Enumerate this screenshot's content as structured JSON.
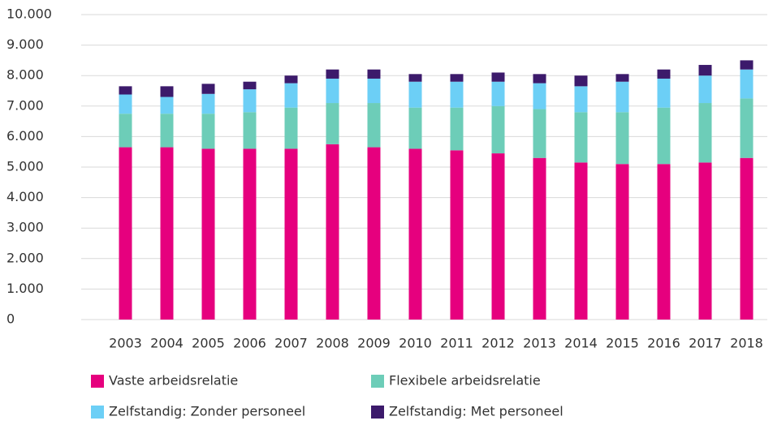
{
  "chart_data": {
    "type": "bar",
    "stacked": true,
    "categories": [
      "2003",
      "2004",
      "2005",
      "2006",
      "2007",
      "2008",
      "2009",
      "2010",
      "2011",
      "2012",
      "2013",
      "2014",
      "2015",
      "2016",
      "2017",
      "2018"
    ],
    "series": [
      {
        "name": "Vaste arbeidsrelatie",
        "color": "#e6007e",
        "values": [
          5650,
          5650,
          5600,
          5600,
          5600,
          5750,
          5650,
          5600,
          5550,
          5450,
          5300,
          5150,
          5100,
          5100,
          5150,
          5300
        ]
      },
      {
        "name": "Flexibele arbeidsrelatie",
        "color": "#6dcdb8",
        "values": [
          1100,
          1100,
          1150,
          1200,
          1350,
          1350,
          1450,
          1350,
          1400,
          1550,
          1600,
          1650,
          1700,
          1850,
          1950,
          1950
        ]
      },
      {
        "name": "Zelfstandig: Zonder personeel",
        "color": "#6ccff6",
        "values": [
          630,
          550,
          650,
          750,
          800,
          800,
          800,
          850,
          850,
          800,
          850,
          850,
          1000,
          950,
          900,
          950
        ]
      },
      {
        "name": "Zelfstandig: Met personeel",
        "color": "#3c1a6b",
        "values": [
          270,
          350,
          330,
          250,
          250,
          300,
          300,
          250,
          250,
          300,
          300,
          350,
          250,
          300,
          350,
          300
        ]
      }
    ],
    "ylim": [
      0,
      10000
    ],
    "yticks": [
      0,
      {
        "value": 1000,
        "label": "1.000"
      },
      {
        "value": 2000,
        "label": "2.000"
      },
      {
        "value": 3000,
        "label": "3.000"
      },
      {
        "value": 4000,
        "label": "4.000"
      },
      {
        "value": 5000,
        "label": "5.000"
      },
      {
        "value": 6000,
        "label": "6.000"
      },
      {
        "value": 7000,
        "label": "7.000"
      },
      {
        "value": 8000,
        "label": "8.000"
      },
      {
        "value": 9000,
        "label": "9.000"
      },
      {
        "value": 10000,
        "label": "10.000"
      }
    ],
    "grid": true
  }
}
